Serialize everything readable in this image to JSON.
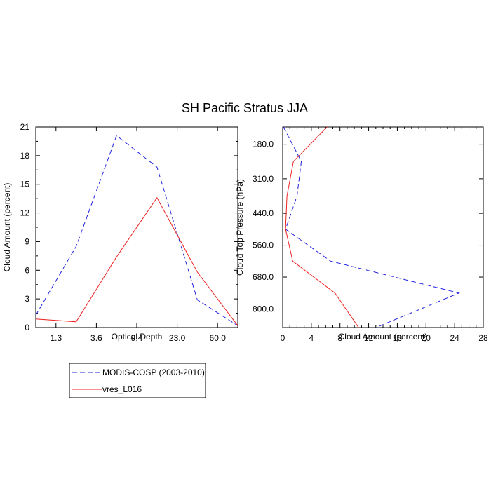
{
  "chart_data": {
    "title": "SH Pacific Stratus JJA",
    "colors": {
      "modis": "#2222dd",
      "model": "#ee2222"
    },
    "legend": {
      "placement": "bottom-left",
      "entries": [
        {
          "name": "MODIS-COSP (2003-2010)",
          "style": "dashed",
          "color": "#2222dd"
        },
        {
          "name": "vres_L016",
          "style": "solid",
          "color": "#ee2222"
        }
      ]
    },
    "panels": [
      {
        "type": "line",
        "xlabel": "Optical Depth",
        "ylabel": "Cloud Amount (percent)",
        "x_tick_labels": [
          "1.3",
          "3.6",
          "9.4",
          "23.0",
          "60.0"
        ],
        "x_tick_positions": [
          1,
          2,
          3,
          4,
          5
        ],
        "xlim": [
          0.5,
          5.5
        ],
        "ylim": [
          0,
          21
        ],
        "y_ticks": [
          "0",
          "3",
          "6",
          "9",
          "12",
          "15",
          "18",
          "21"
        ],
        "series": [
          {
            "name": "MODIS-COSP (2003-2010)",
            "x": [
              0.5,
              1.5,
              2.5,
              3.5,
              4.5,
              5.5
            ],
            "y": [
              1.3,
              8.5,
              20.1,
              16.8,
              2.9,
              0.2
            ]
          },
          {
            "name": "vres_L016",
            "x": [
              0.5,
              1.5,
              2.5,
              3.5,
              4.5,
              5.5
            ],
            "y": [
              0.9,
              0.6,
              7.4,
              13.6,
              5.8,
              0.2
            ]
          }
        ]
      },
      {
        "type": "line",
        "xlabel": "Cloud Amount (percent)",
        "ylabel": "Cloud Top Pressure (hPa)",
        "xlim": [
          0,
          28
        ],
        "x_ticks": [
          "0",
          "4",
          "8",
          "12",
          "16",
          "20",
          "24",
          "28"
        ],
        "y_tick_labels": [
          "180.0",
          "310.0",
          "440.0",
          "560.0",
          "680.0",
          "800.0"
        ],
        "y_tick_positions": [
          180,
          310,
          440,
          560,
          680,
          800
        ],
        "ylim": [
          115,
          870
        ],
        "y_inverted": true,
        "series": [
          {
            "name": "MODIS-COSP (2003-2010)",
            "pressure": [
              115,
              245,
              375,
              500,
              620,
              740,
              870
            ],
            "amount": [
              0.1,
              2.6,
              2.0,
              0.4,
              6.7,
              24.6,
              13.0
            ]
          },
          {
            "name": "vres_L016",
            "pressure": [
              115,
              245,
              375,
              500,
              620,
              740,
              870
            ],
            "amount": [
              6.2,
              1.5,
              0.6,
              0.4,
              1.4,
              7.3,
              10.6
            ]
          }
        ]
      }
    ]
  }
}
